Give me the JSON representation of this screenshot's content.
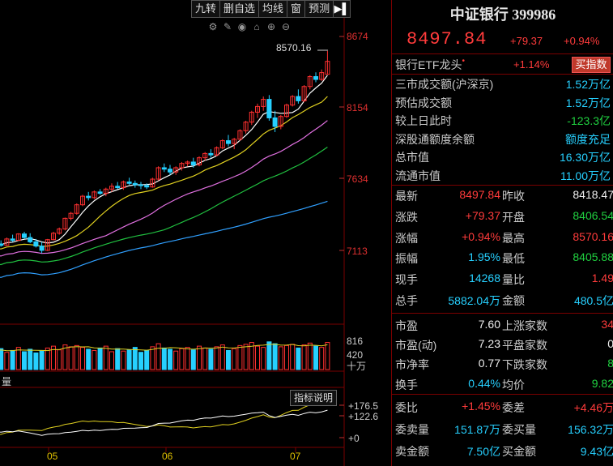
{
  "toolbar": {
    "buttons": [
      "九转",
      "删自选",
      "均线",
      "窗",
      "预测"
    ],
    "arrow": "▶▌"
  },
  "chart_icons": [
    "settings-icon",
    "pen-icon",
    "eye-icon",
    "lock-icon",
    "zoom-in-icon",
    "zoom-out-icon"
  ],
  "chart_data": {
    "type": "candlestick",
    "price_axis_ticks": [
      "8674",
      "8154",
      "7634",
      "7113"
    ],
    "high_annotation": "8570.16",
    "volume_axis_ticks": [
      "816",
      "420",
      "十万"
    ],
    "volume_label": "量",
    "indicator_axis_ticks": [
      "+176.5",
      "+122.6",
      "+0"
    ],
    "indicator_button": "指标说明",
    "x_labels": [
      "05",
      "06",
      "07"
    ],
    "candles": [
      [
        7200,
        7230,
        7180,
        7215
      ],
      [
        7215,
        7240,
        7195,
        7205
      ],
      [
        7205,
        7260,
        7200,
        7250
      ],
      [
        7250,
        7280,
        7230,
        7240
      ],
      [
        7240,
        7290,
        7235,
        7285
      ],
      [
        7285,
        7300,
        7250,
        7260
      ],
      [
        7260,
        7290,
        7220,
        7230
      ],
      [
        7230,
        7250,
        7190,
        7200
      ],
      [
        7200,
        7230,
        7150,
        7170
      ],
      [
        7170,
        7250,
        7165,
        7245
      ],
      [
        7245,
        7300,
        7240,
        7290
      ],
      [
        7290,
        7330,
        7280,
        7320
      ],
      [
        7320,
        7400,
        7310,
        7395
      ],
      [
        7395,
        7440,
        7380,
        7430
      ],
      [
        7430,
        7500,
        7420,
        7490
      ],
      [
        7490,
        7560,
        7480,
        7550
      ],
      [
        7550,
        7580,
        7520,
        7540
      ],
      [
        7540,
        7590,
        7530,
        7580
      ],
      [
        7580,
        7600,
        7560,
        7570
      ],
      [
        7570,
        7610,
        7550,
        7600
      ],
      [
        7600,
        7640,
        7580,
        7620
      ],
      [
        7620,
        7650,
        7600,
        7610
      ],
      [
        7610,
        7660,
        7595,
        7650
      ],
      [
        7650,
        7680,
        7630,
        7640
      ],
      [
        7640,
        7660,
        7610,
        7630
      ],
      [
        7630,
        7650,
        7600,
        7625
      ],
      [
        7625,
        7640,
        7600,
        7615
      ],
      [
        7615,
        7680,
        7610,
        7670
      ],
      [
        7670,
        7760,
        7660,
        7750
      ],
      [
        7750,
        7780,
        7720,
        7740
      ],
      [
        7740,
        7770,
        7700,
        7720
      ],
      [
        7720,
        7760,
        7700,
        7750
      ],
      [
        7750,
        7790,
        7730,
        7780
      ],
      [
        7780,
        7800,
        7760,
        7790
      ],
      [
        7790,
        7820,
        7750,
        7770
      ],
      [
        7770,
        7830,
        7760,
        7820
      ],
      [
        7820,
        7860,
        7800,
        7850
      ],
      [
        7850,
        7880,
        7820,
        7840
      ],
      [
        7840,
        7900,
        7830,
        7890
      ],
      [
        7890,
        7950,
        7880,
        7940
      ],
      [
        7940,
        7980,
        7900,
        7920
      ],
      [
        7920,
        7960,
        7880,
        7950
      ],
      [
        7950,
        8020,
        7940,
        8010
      ],
      [
        8010,
        8080,
        7990,
        8070
      ],
      [
        8070,
        8150,
        8050,
        8140
      ],
      [
        8140,
        8200,
        8100,
        8180
      ],
      [
        8180,
        8250,
        8150,
        8230
      ],
      [
        8230,
        8260,
        8080,
        8100
      ],
      [
        8100,
        8150,
        8000,
        8040
      ],
      [
        8040,
        8120,
        8020,
        8110
      ],
      [
        8110,
        8200,
        8100,
        8190
      ],
      [
        8190,
        8260,
        8180,
        8250
      ],
      [
        8250,
        8300,
        8200,
        8220
      ],
      [
        8220,
        8330,
        8210,
        8320
      ],
      [
        8320,
        8400,
        8300,
        8390
      ],
      [
        8390,
        8420,
        8350,
        8370
      ],
      [
        8370,
        8440,
        8360,
        8418
      ],
      [
        8406,
        8570,
        8405,
        8497
      ]
    ],
    "volumes": [
      30,
      34,
      28,
      31,
      36,
      29,
      33,
      27,
      30,
      35,
      38,
      32,
      40,
      37,
      39,
      36,
      33,
      31,
      35,
      38,
      29,
      34,
      30,
      32,
      36,
      28,
      31,
      37,
      42,
      35,
      33,
      30,
      34,
      36,
      32,
      38,
      35,
      33,
      37,
      40,
      31,
      34,
      39,
      41,
      44,
      38,
      36,
      45,
      42,
      37,
      39,
      41,
      35,
      40,
      43,
      38,
      36,
      44
    ],
    "ma_lines": [
      {
        "name": "MA5",
        "color": "#ffffff"
      },
      {
        "name": "MA10",
        "color": "#e0d020"
      },
      {
        "name": "MA20",
        "color": "#e070e0"
      },
      {
        "name": "MA30",
        "color": "#20c040"
      },
      {
        "name": "MA60",
        "color": "#30a0ff"
      }
    ],
    "ylim": [
      7050,
      8700
    ],
    "colors": {
      "up": "#ff3030",
      "down": "#26d0ff"
    }
  },
  "quote": {
    "title": "中证银行 399986",
    "price": "8497.84",
    "change": "+79.37",
    "change_pct": "+0.94%",
    "etf_label": "银行ETF龙头",
    "etf_dot": "•",
    "etf_change": "+1.14%",
    "buy_button": "买指数",
    "stats": [
      {
        "label": "三市成交额(沪深京)",
        "value": "1.52万亿",
        "cls": "cyan"
      },
      {
        "label": "预估成交额",
        "value": "1.52万亿",
        "cls": "cyan"
      },
      {
        "label": "较上日此时",
        "value": "-123.3亿",
        "cls": "green"
      },
      {
        "label": "深股通额度余额",
        "value": "额度充足",
        "cls": "cyan"
      },
      {
        "label": "总市值",
        "value": "16.30万亿",
        "cls": "cyan"
      },
      {
        "label": "流通市值",
        "value": "11.00万亿",
        "cls": "cyan"
      }
    ],
    "grid1": [
      {
        "l1": "最新",
        "v1": "8497.84",
        "c1": "red",
        "l2": "昨收",
        "v2": "8418.47",
        "c2": "white"
      },
      {
        "l1": "涨跌",
        "v1": "+79.37",
        "c1": "red",
        "l2": "开盘",
        "v2": "8406.54",
        "c2": "green"
      },
      {
        "l1": "涨幅",
        "v1": "+0.94%",
        "c1": "red",
        "l2": "最高",
        "v2": "8570.16",
        "c2": "red"
      },
      {
        "l1": "振幅",
        "v1": "1.95%",
        "c1": "cyan",
        "l2": "最低",
        "v2": "8405.88",
        "c2": "green"
      },
      {
        "l1": "现手",
        "v1": "14268",
        "c1": "cyan",
        "l2": "量比",
        "v2": "1.49",
        "c2": "red"
      },
      {
        "l1": "总手",
        "v1": "5882.04万",
        "c1": "cyan",
        "l2": "金额",
        "v2": "480.5亿",
        "c2": "cyan"
      }
    ],
    "grid2": [
      {
        "l1": "市盈",
        "v1": "7.60",
        "c1": "white",
        "l2": "上涨家数",
        "v2": "34",
        "c2": "red"
      },
      {
        "l1": "市盈(动)",
        "v1": "7.23",
        "c1": "white",
        "l2": "平盘家数",
        "v2": "0",
        "c2": "white"
      },
      {
        "l1": "市净率",
        "v1": "0.77",
        "c1": "white",
        "l2": "下跌家数",
        "v2": "8",
        "c2": "green"
      },
      {
        "l1": "换手",
        "v1": "0.44%",
        "c1": "cyan",
        "l2": "均价",
        "v2": "9.82",
        "c2": "green"
      }
    ],
    "grid3": [
      {
        "l1": "委比",
        "v1": "+1.45%",
        "c1": "red",
        "l2": "委差",
        "v2": "+4.46万",
        "c2": "red"
      },
      {
        "l1": "委卖量",
        "v1": "151.87万",
        "c1": "cyan",
        "l2": "委买量",
        "v2": "156.32万",
        "c2": "cyan"
      },
      {
        "l1": "卖金额",
        "v1": "7.50亿",
        "c1": "cyan",
        "l2": "买金额",
        "v2": "9.43亿",
        "c2": "cyan"
      }
    ]
  }
}
